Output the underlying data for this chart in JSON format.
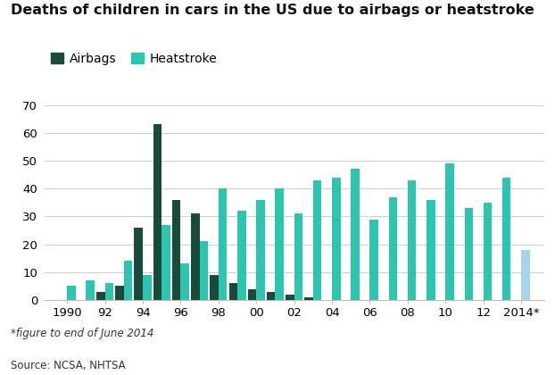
{
  "title": "Deaths of children in cars in the US due to airbags or heatstroke",
  "legend_labels": [
    "Airbags",
    "Heatstroke"
  ],
  "airbag_color": "#1a4a3a",
  "heatstroke_color": "#2dc5b0",
  "heatstroke_2014_color": "#a8d4e8",
  "footnote": "*figure to end of June 2014",
  "source": "Source: NCSA, NHTSA",
  "years": [
    1990,
    1991,
    1992,
    1993,
    1994,
    1995,
    1996,
    1997,
    1998,
    1999,
    2000,
    2001,
    2002,
    2003,
    2004,
    2005,
    2006,
    2007,
    2008,
    2009,
    2010,
    2011,
    2012,
    2013,
    2014
  ],
  "airbags": [
    0,
    0,
    3,
    5,
    26,
    63,
    36,
    31,
    9,
    6,
    4,
    3,
    2,
    1,
    0,
    0,
    0,
    0,
    0,
    0,
    0,
    0,
    0,
    0,
    0
  ],
  "heatstroke": [
    5,
    7,
    6,
    14,
    9,
    27,
    13,
    21,
    40,
    32,
    36,
    40,
    31,
    43,
    44,
    47,
    29,
    37,
    43,
    36,
    49,
    33,
    35,
    44,
    18
  ],
  "ylim": [
    0,
    70
  ],
  "yticks": [
    0,
    10,
    20,
    30,
    40,
    50,
    60,
    70
  ],
  "xtick_labels": [
    "1990",
    "92",
    "94",
    "96",
    "98",
    "00",
    "02",
    "04",
    "06",
    "08",
    "10",
    "12",
    "2014*"
  ],
  "xtick_positions": [
    1990,
    1992,
    1994,
    1996,
    1998,
    2000,
    2002,
    2004,
    2006,
    2008,
    2010,
    2012,
    2014
  ],
  "xlim": [
    1988.8,
    2015.2
  ],
  "bar_width": 0.45,
  "background_color": "#ffffff",
  "grid_color": "#cccccc",
  "title_fontsize": 11.5,
  "legend_fontsize": 10,
  "tick_fontsize": 9.5,
  "footnote_fontsize": 8.5
}
